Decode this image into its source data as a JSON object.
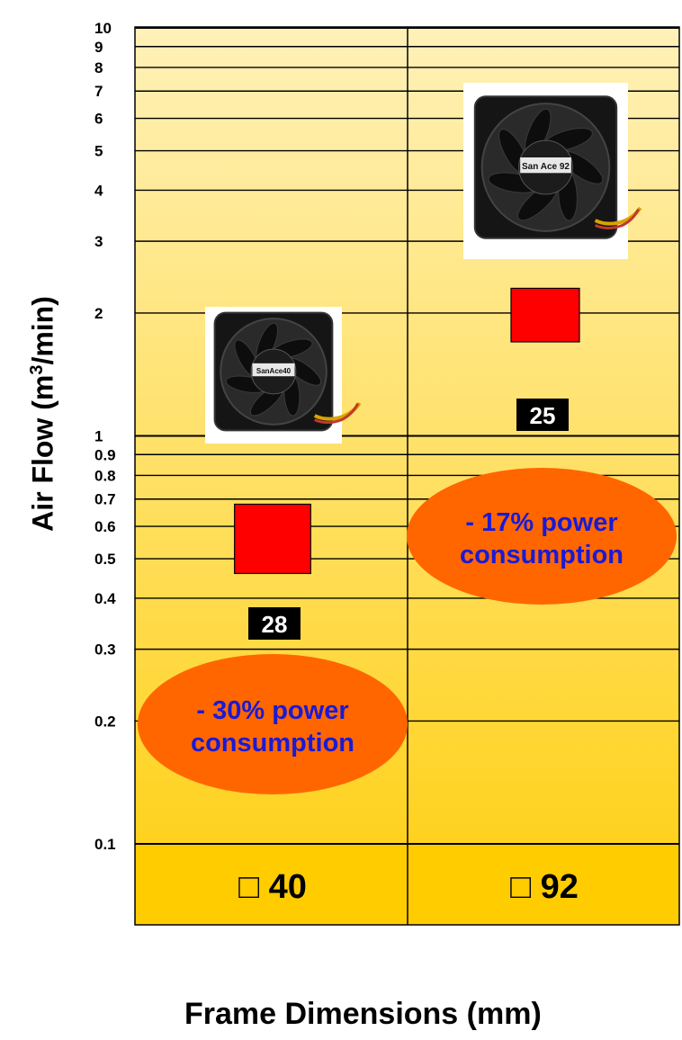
{
  "chart_data": {
    "type": "scatter",
    "title": "",
    "ylabel": "Air Flow (m3/min)",
    "ylabel_parts": [
      "Air Flow (m",
      "3",
      "/min)"
    ],
    "xlabel": "Frame Dimensions (mm)",
    "y_scale": "log",
    "ylim": [
      0.1,
      10
    ],
    "y_ticks": [
      10,
      9,
      8,
      7,
      6,
      5,
      4,
      3,
      2,
      1,
      0.9,
      0.8,
      0.7,
      0.6,
      0.5,
      0.4,
      0.3,
      0.2,
      0.1
    ],
    "y_tick_labels": [
      "10",
      "9",
      "8",
      "7",
      "6",
      "5",
      "4",
      "3",
      "2",
      "1",
      "0.9",
      "0.8",
      "0.7",
      "0.6",
      "0.5",
      "0.4",
      "0.3",
      "0.2",
      "0.1"
    ],
    "categories": [
      "□ 40",
      "□ 92"
    ],
    "points": [
      {
        "category": "□ 40",
        "y_low": 0.46,
        "y_high": 0.68,
        "label": "28",
        "image_caption": "SanAce40",
        "callout": [
          "- 30% power",
          "consumption"
        ]
      },
      {
        "category": "□ 92",
        "y_low": 1.7,
        "y_high": 2.3,
        "label": "25",
        "image_caption": "San Ace 92",
        "callout": [
          "- 17% power",
          "consumption"
        ]
      }
    ],
    "colors": {
      "marker": "#ff0000",
      "callout_fill": "#ff6600",
      "callout_text": "#1a1ad6",
      "label_box": "#000000",
      "label_text": "#ffffff",
      "bg_top": "#fff1b8",
      "bg_bottom": "#ffd21f",
      "category_band": "#ffcc00"
    }
  }
}
